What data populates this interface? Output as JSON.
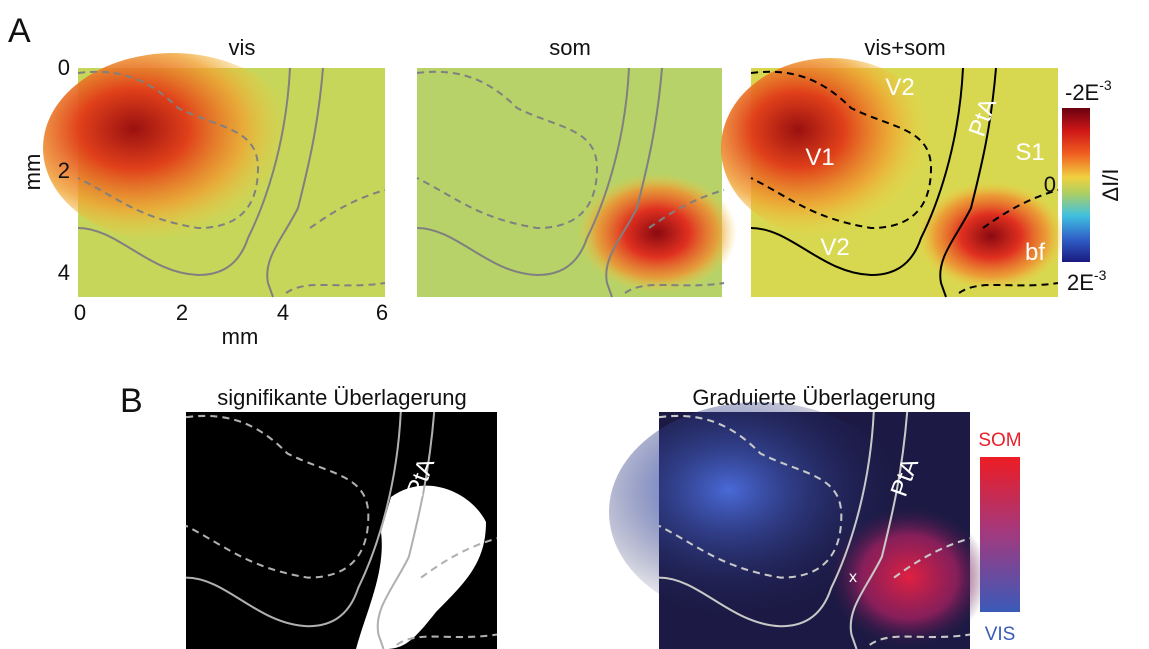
{
  "panel_a": {
    "label": "A",
    "titles": [
      "vis",
      "som",
      "vis+som"
    ],
    "y_axis": {
      "label": "mm",
      "ticks": [
        "0",
        "2",
        "4"
      ]
    },
    "x_axis": {
      "label": "mm",
      "ticks": [
        "0",
        "2",
        "4",
        "6"
      ]
    },
    "region_labels": [
      "V2",
      "V1",
      "PtA",
      "S1",
      "V2",
      "bf"
    ],
    "colorbar": {
      "top": {
        "base": "-2E",
        "exp": "-3"
      },
      "middle": "0",
      "bottom": {
        "base": "2E",
        "exp": "-3"
      },
      "label": "ΔI/I"
    }
  },
  "panel_b": {
    "label": "B",
    "titles": [
      "signifikante Überlagerung",
      "Graduierte Überlagerung"
    ],
    "region_labels": [
      "PtA",
      "PtA",
      "x"
    ],
    "colorbar": {
      "top": "SOM",
      "bottom": "VIS"
    }
  }
}
